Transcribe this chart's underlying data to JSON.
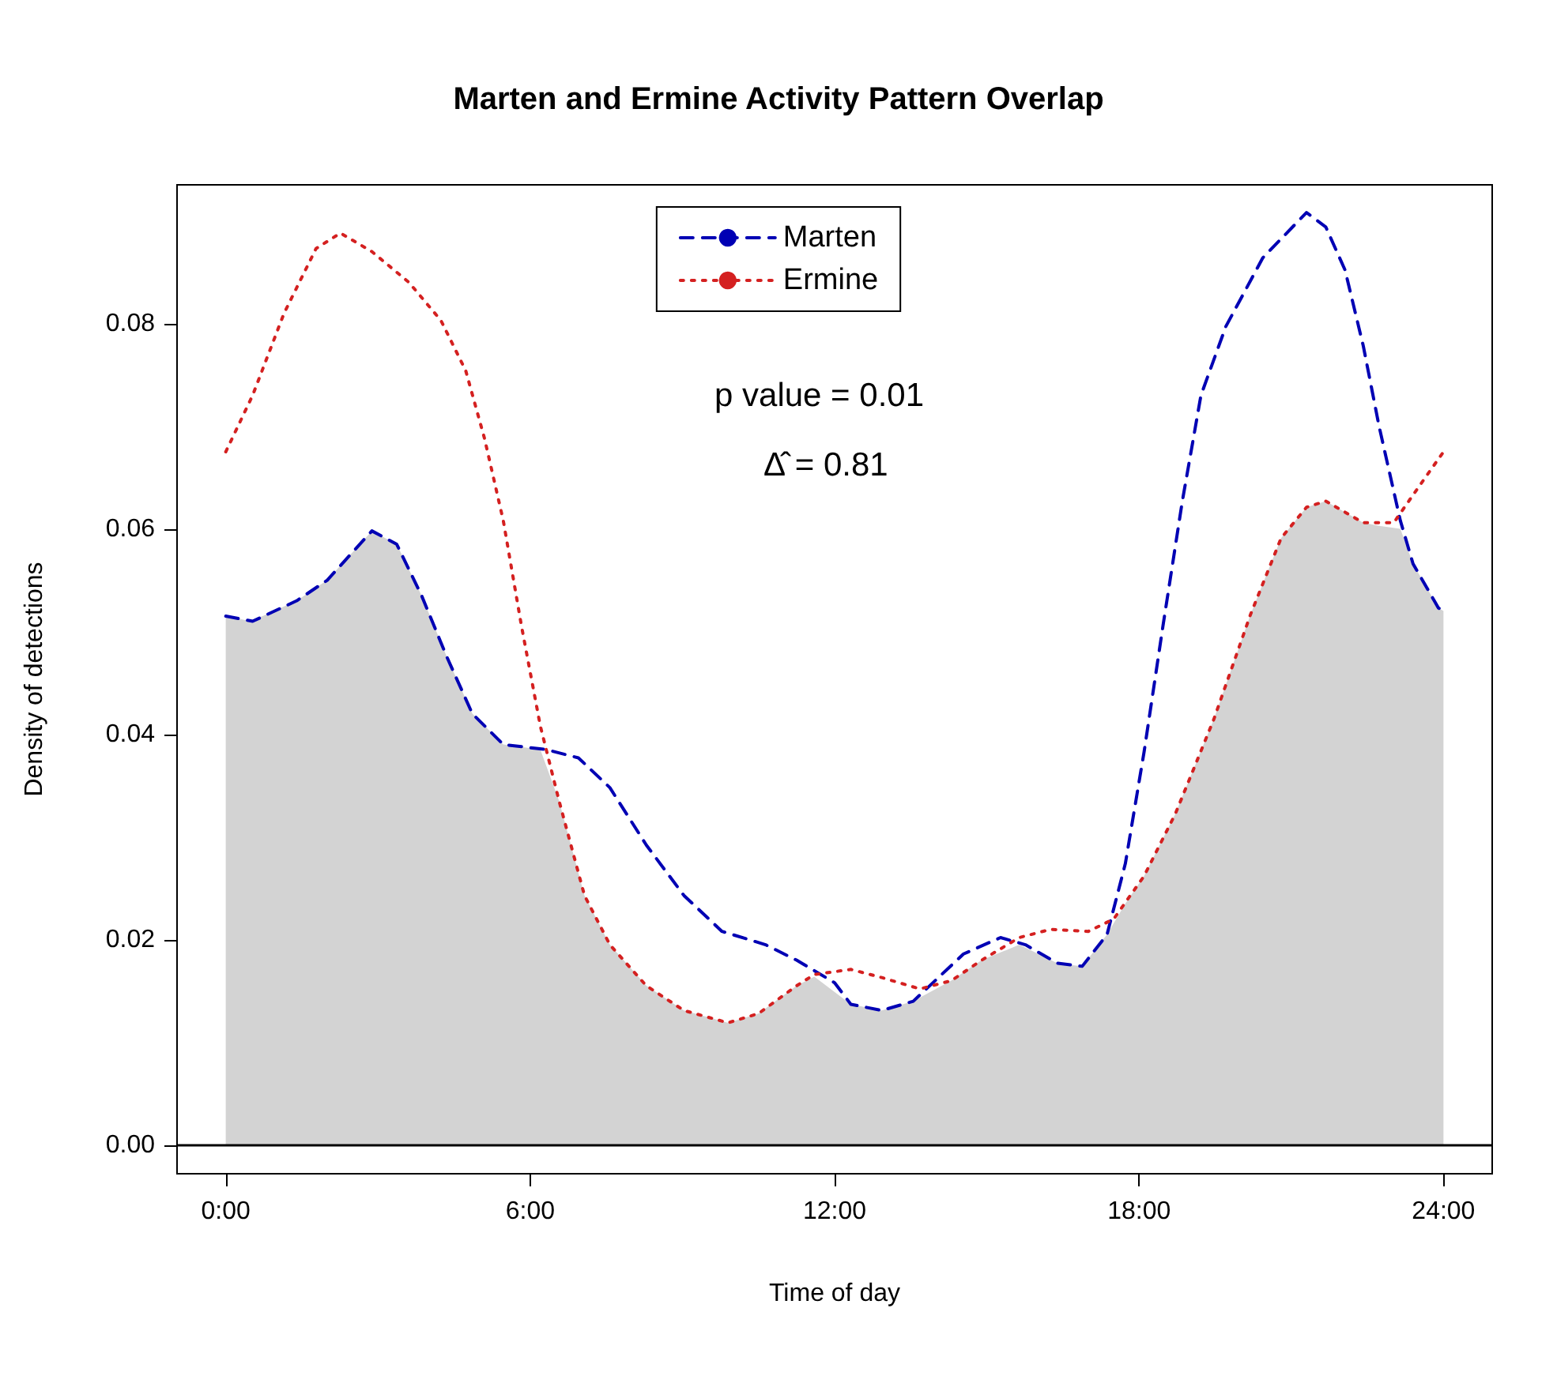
{
  "chart_data": {
    "type": "line",
    "title": "Marten and Ermine Activity Pattern Overlap",
    "xlabel": "Time of day",
    "ylabel": "Density of detections",
    "annotations": [
      "p value = 0.01",
      "Δ̂ = 0.81"
    ],
    "xlim": [
      -0.96,
      24.96
    ],
    "ylim": [
      -0.0028,
      0.0935
    ],
    "xticks": [
      {
        "value": 0,
        "label": "0:00"
      },
      {
        "value": 6,
        "label": "6:00"
      },
      {
        "value": 12,
        "label": "12:00"
      },
      {
        "value": 18,
        "label": "18:00"
      },
      {
        "value": 24,
        "label": "24:00"
      }
    ],
    "yticks": [
      {
        "value": 0,
        "label": "0.00"
      },
      {
        "value": 0.02,
        "label": "0.02"
      },
      {
        "value": 0.04,
        "label": "0.04"
      },
      {
        "value": 0.06,
        "label": "0.06"
      },
      {
        "value": 0.08,
        "label": "0.08"
      }
    ],
    "grid": false,
    "legend": "top",
    "ref_lines": [
      {
        "axis": "y",
        "value": 0,
        "color": "#000000",
        "line_style": "solid"
      }
    ],
    "series": [
      {
        "type": "area",
        "color": "#d3d3d3",
        "x": [
          0,
          0.5,
          1.4,
          2.0,
          2.88,
          3.37,
          3.86,
          4.36,
          4.86,
          5.47,
          6.2,
          6.57,
          7.07,
          7.57,
          8.29,
          9.03,
          9.9,
          10.5,
          11.25,
          11.6,
          12.32,
          12.93,
          13.55,
          14.3,
          14.9,
          15.64,
          16.39,
          16.88,
          17.37,
          17.73,
          18.1,
          18.72,
          19.47,
          20.2,
          20.8,
          21.3,
          21.68,
          22.42,
          22.73,
          23.15,
          23.4,
          23.9,
          24
        ],
        "values": [
          0.0515,
          0.051,
          0.053,
          0.055,
          0.0598,
          0.0585,
          0.0535,
          0.0475,
          0.042,
          0.039,
          0.0385,
          0.0335,
          0.0243,
          0.0195,
          0.0155,
          0.0131,
          0.0119,
          0.0128,
          0.0155,
          0.0164,
          0.0137,
          0.0131,
          0.014,
          0.016,
          0.018,
          0.0195,
          0.0177,
          0.0174,
          0.0205,
          0.0235,
          0.0262,
          0.0323,
          0.0414,
          0.0517,
          0.0591,
          0.0621,
          0.0627,
          0.0606,
          0.0603,
          0.06,
          0.0566,
          0.0523,
          0.052
        ]
      },
      {
        "name": "Marten",
        "type": "line",
        "color": "#0000b4",
        "line_style": "dashed",
        "x": [
          0,
          0.53,
          1.4,
          2.0,
          2.88,
          3.37,
          3.86,
          4.36,
          4.86,
          5.47,
          6.32,
          6.95,
          7.57,
          8.29,
          9.03,
          9.78,
          10.64,
          11.25,
          12.0,
          12.32,
          12.93,
          13.55,
          14.54,
          15.27,
          15.76,
          16.39,
          16.88,
          17.37,
          17.73,
          18.1,
          18.47,
          18.85,
          19.22,
          19.71,
          20.44,
          21.3,
          21.68,
          22.06,
          22.42,
          22.73,
          23.15,
          23.4,
          23.9,
          24
        ],
        "values": [
          0.0515,
          0.051,
          0.053,
          0.055,
          0.0598,
          0.0585,
          0.0535,
          0.0475,
          0.042,
          0.039,
          0.0385,
          0.0377,
          0.0348,
          0.0292,
          0.0243,
          0.0208,
          0.0195,
          0.018,
          0.0158,
          0.0137,
          0.0131,
          0.014,
          0.0186,
          0.0202,
          0.0195,
          0.0177,
          0.0174,
          0.0205,
          0.0274,
          0.0383,
          0.0505,
          0.0626,
          0.073,
          0.0797,
          0.0864,
          0.0908,
          0.0894,
          0.0852,
          0.0778,
          0.07,
          0.0608,
          0.0566,
          0.0523,
          0.052
        ]
      },
      {
        "name": "Ermine",
        "type": "line",
        "color": "#d42020",
        "line_style": "dotted",
        "x": [
          0,
          0.53,
          1.15,
          1.78,
          2.26,
          2.88,
          3.61,
          4.24,
          4.73,
          5.1,
          5.47,
          5.83,
          6.2,
          6.57,
          7.07,
          7.57,
          8.29,
          9.03,
          9.9,
          10.5,
          11.25,
          11.6,
          12.32,
          12.93,
          13.68,
          14.3,
          14.9,
          15.64,
          16.26,
          17.0,
          17.5,
          18.1,
          18.72,
          19.47,
          20.2,
          20.8,
          21.3,
          21.68,
          22.42,
          23.02,
          23.4,
          24
        ],
        "values": [
          0.0675,
          0.073,
          0.081,
          0.0873,
          0.0888,
          0.087,
          0.084,
          0.0803,
          0.0754,
          0.0688,
          0.0608,
          0.0505,
          0.0408,
          0.0335,
          0.0243,
          0.0195,
          0.0155,
          0.0131,
          0.0119,
          0.0128,
          0.0155,
          0.0166,
          0.0171,
          0.0163,
          0.0152,
          0.016,
          0.018,
          0.0202,
          0.021,
          0.0208,
          0.022,
          0.0262,
          0.0323,
          0.0414,
          0.0517,
          0.0591,
          0.0621,
          0.0627,
          0.0606,
          0.0606,
          0.0633,
          0.0675
        ]
      }
    ]
  }
}
